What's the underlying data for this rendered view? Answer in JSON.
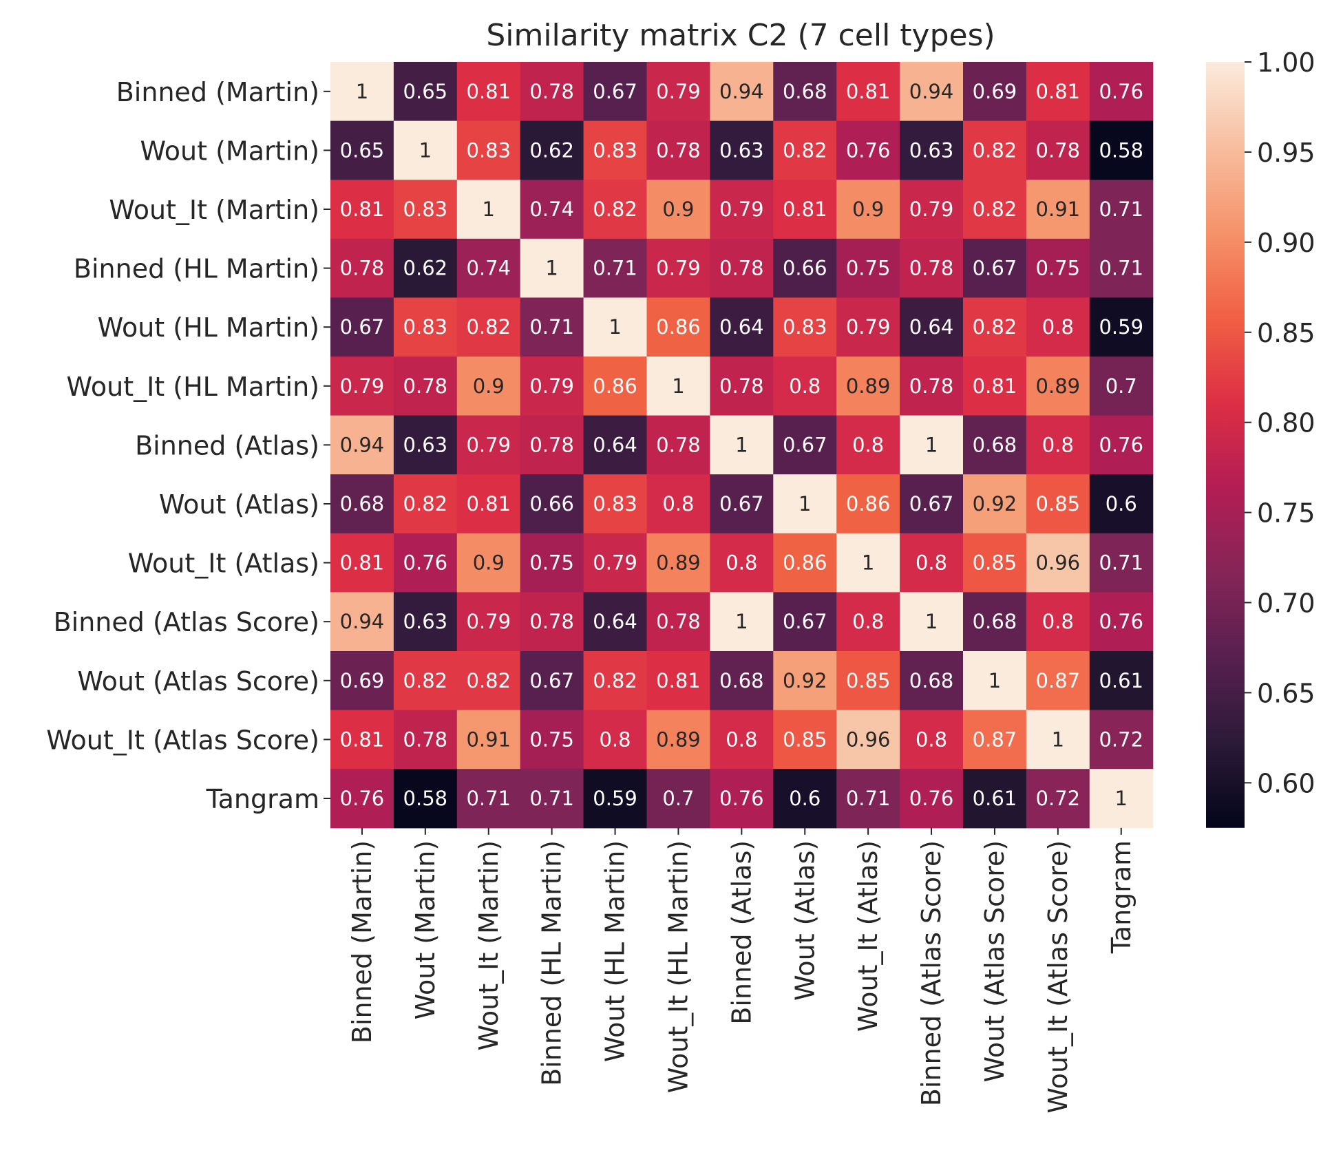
{
  "chart_data": {
    "type": "heatmap",
    "title": "Similarity matrix C2 (7 cell types)",
    "xlabel": "",
    "ylabel": "",
    "row_labels": [
      "Binned (Martin)",
      "Wout (Martin)",
      "Wout_It (Martin)",
      "Binned (HL Martin)",
      "Wout (HL Martin)",
      "Wout_It (HL Martin)",
      "Binned (Atlas)",
      "Wout (Atlas)",
      "Wout_It (Atlas)",
      "Binned (Atlas Score)",
      "Wout (Atlas Score)",
      "Wout_It (Atlas Score)",
      "Tangram"
    ],
    "col_labels": [
      "Binned (Martin)",
      "Wout (Martin)",
      "Wout_It (Martin)",
      "Binned (HL Martin)",
      "Wout (HL Martin)",
      "Wout_It (HL Martin)",
      "Binned (Atlas)",
      "Wout (Atlas)",
      "Wout_It (Atlas)",
      "Binned (Atlas Score)",
      "Wout (Atlas Score)",
      "Wout_It (Atlas Score)",
      "Tangram"
    ],
    "values": [
      [
        1,
        0.65,
        0.81,
        0.78,
        0.67,
        0.79,
        0.94,
        0.68,
        0.81,
        0.94,
        0.69,
        0.81,
        0.76
      ],
      [
        0.65,
        1,
        0.83,
        0.62,
        0.83,
        0.78,
        0.63,
        0.82,
        0.76,
        0.63,
        0.82,
        0.78,
        0.58
      ],
      [
        0.81,
        0.83,
        1,
        0.74,
        0.82,
        0.9,
        0.79,
        0.81,
        0.9,
        0.79,
        0.82,
        0.91,
        0.71
      ],
      [
        0.78,
        0.62,
        0.74,
        1,
        0.71,
        0.79,
        0.78,
        0.66,
        0.75,
        0.78,
        0.67,
        0.75,
        0.71
      ],
      [
        0.67,
        0.83,
        0.82,
        0.71,
        1,
        0.86,
        0.64,
        0.83,
        0.79,
        0.64,
        0.82,
        0.8,
        0.59
      ],
      [
        0.79,
        0.78,
        0.9,
        0.79,
        0.86,
        1,
        0.78,
        0.8,
        0.89,
        0.78,
        0.81,
        0.89,
        0.7
      ],
      [
        0.94,
        0.63,
        0.79,
        0.78,
        0.64,
        0.78,
        1,
        0.67,
        0.8,
        1,
        0.68,
        0.8,
        0.76
      ],
      [
        0.68,
        0.82,
        0.81,
        0.66,
        0.83,
        0.8,
        0.67,
        1,
        0.86,
        0.67,
        0.92,
        0.85,
        0.6
      ],
      [
        0.81,
        0.76,
        0.9,
        0.75,
        0.79,
        0.89,
        0.8,
        0.86,
        1,
        0.8,
        0.85,
        0.96,
        0.71
      ],
      [
        0.94,
        0.63,
        0.79,
        0.78,
        0.64,
        0.78,
        1,
        0.67,
        0.8,
        1,
        0.68,
        0.8,
        0.76
      ],
      [
        0.69,
        0.82,
        0.82,
        0.67,
        0.82,
        0.81,
        0.68,
        0.92,
        0.85,
        0.68,
        1,
        0.87,
        0.61
      ],
      [
        0.81,
        0.78,
        0.91,
        0.75,
        0.8,
        0.89,
        0.8,
        0.85,
        0.96,
        0.8,
        0.87,
        1,
        0.72
      ],
      [
        0.76,
        0.58,
        0.71,
        0.71,
        0.59,
        0.7,
        0.76,
        0.6,
        0.71,
        0.76,
        0.61,
        0.72,
        1
      ]
    ],
    "colorbar": {
      "min": 0.575,
      "max": 1.0,
      "ticks": [
        "0.60",
        "0.65",
        "0.70",
        "0.75",
        "0.80",
        "0.85",
        "0.90",
        "0.95",
        "1.00"
      ],
      "colormap": "rocket",
      "stops": [
        "#03051a",
        "#2b1a38",
        "#57204f",
        "#852557",
        "#b31d54",
        "#dd2f45",
        "#f06043",
        "#f5936a",
        "#f7be9f",
        "#faebdd"
      ]
    },
    "annotations": "cell values shown",
    "grid": false,
    "legend": "colorbar right"
  }
}
